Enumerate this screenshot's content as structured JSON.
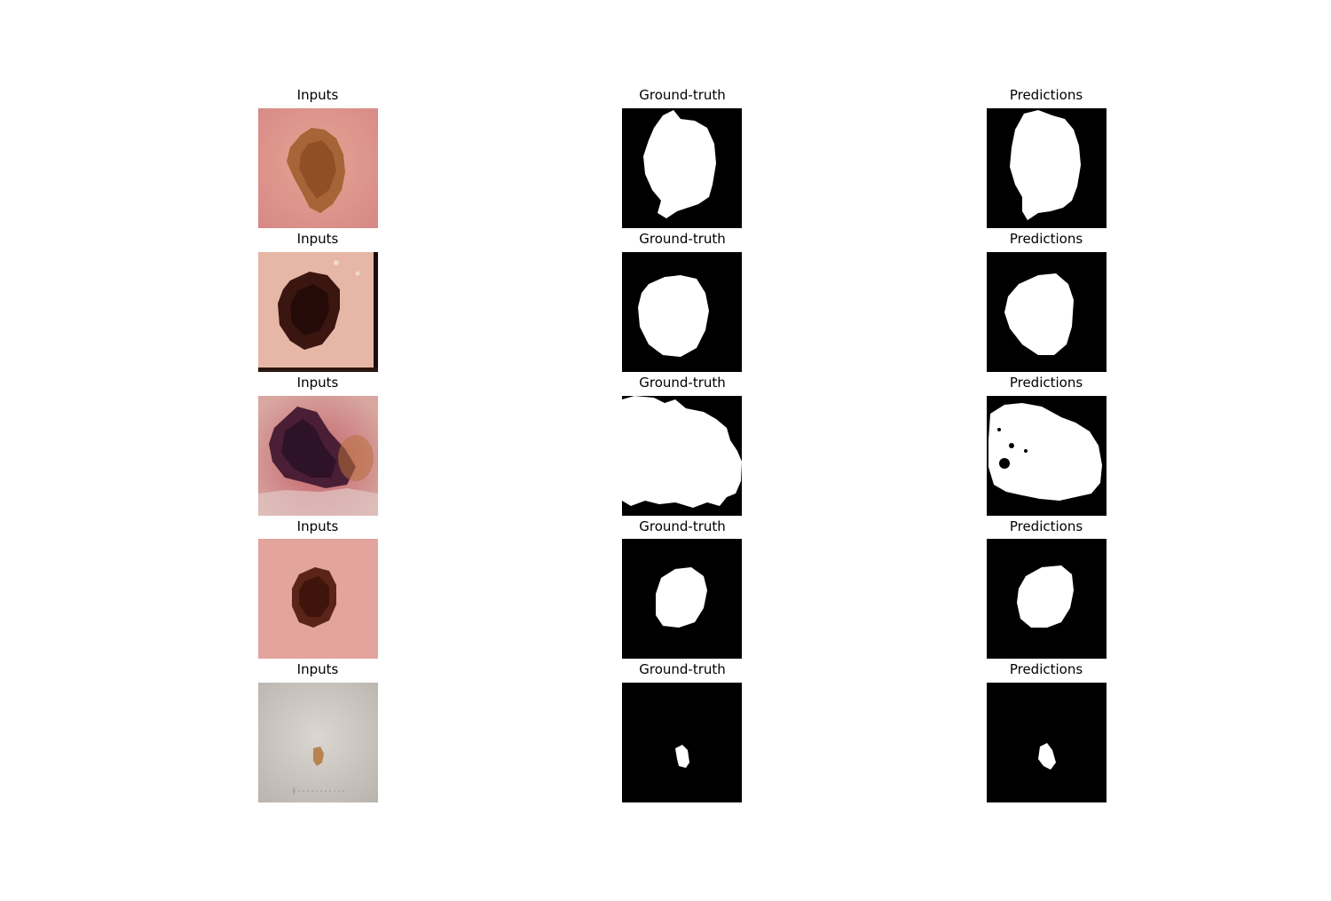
{
  "columns": [
    "Inputs",
    "Ground-truth",
    "Predictions"
  ],
  "rows": [
    {
      "titles": [
        "Inputs",
        "Ground-truth",
        "Predictions"
      ]
    },
    {
      "titles": [
        "Inputs",
        "Ground-truth",
        "Predictions"
      ]
    },
    {
      "titles": [
        "Inputs",
        "Ground-truth",
        "Predictions"
      ]
    },
    {
      "titles": [
        "Inputs",
        "Ground-truth",
        "Predictions"
      ]
    },
    {
      "titles": [
        "Inputs",
        "Ground-truth",
        "Predictions"
      ]
    }
  ],
  "colors": {
    "skin_pink": "#e8a59a",
    "skin_light": "#d8d2cc",
    "lesion_brown": "#9a5a2e",
    "lesion_dark": "#3a1410",
    "mask_bg": "#000000",
    "mask_fg": "#ffffff"
  }
}
